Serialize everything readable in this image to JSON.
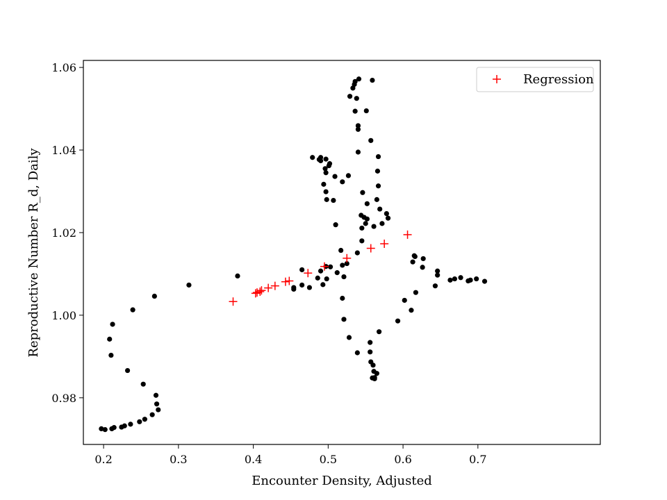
{
  "chart_data": {
    "type": "scatter",
    "title": "",
    "xlabel": "Encounter Density, Adjusted",
    "ylabel": "Reproductive Number R_d, Daily",
    "xlim": [
      0.173,
      0.8635
    ],
    "ylim": [
      0.9687,
      1.0617
    ],
    "xticks": [
      0.2,
      0.3,
      0.4,
      0.5,
      0.6,
      0.7
    ],
    "xtick_labels": [
      "0.2",
      "0.3",
      "0.4",
      "0.5",
      "0.6",
      "0.7"
    ],
    "yticks": [
      0.98,
      1.0,
      1.02,
      1.04,
      1.06
    ],
    "ytick_labels": [
      "0.98",
      "1.00",
      "1.02",
      "1.04",
      "1.06"
    ],
    "grid": false,
    "legend_position": "top-right",
    "series": [
      {
        "name": "",
        "marker": "dot",
        "color": "#000000",
        "points": [
          [
            0.197,
            0.9725
          ],
          [
            0.202,
            0.9723
          ],
          [
            0.211,
            0.9725
          ],
          [
            0.214,
            0.9728
          ],
          [
            0.224,
            0.9729
          ],
          [
            0.228,
            0.9732
          ],
          [
            0.236,
            0.9736
          ],
          [
            0.248,
            0.9742
          ],
          [
            0.255,
            0.9748
          ],
          [
            0.265,
            0.9759
          ],
          [
            0.273,
            0.9771
          ],
          [
            0.271,
            0.9785
          ],
          [
            0.27,
            0.9806
          ],
          [
            0.253,
            0.9833
          ],
          [
            0.232,
            0.9866
          ],
          [
            0.21,
            0.9903
          ],
          [
            0.208,
            0.9942
          ],
          [
            0.212,
            0.9978
          ],
          [
            0.239,
            1.0013
          ],
          [
            0.268,
            1.0046
          ],
          [
            0.314,
            1.0073
          ],
          [
            0.379,
            1.0095
          ],
          [
            0.454,
            1.0067
          ],
          [
            0.454,
            1.0063
          ],
          [
            0.465,
            1.011
          ],
          [
            0.465,
            1.0073
          ],
          [
            0.475,
            1.0067
          ],
          [
            0.486,
            1.009
          ],
          [
            0.49,
            1.0107
          ],
          [
            0.493,
            1.0074
          ],
          [
            0.497,
            1.0118
          ],
          [
            0.498,
            1.0088
          ],
          [
            0.503,
            1.0117
          ],
          [
            0.512,
            1.0103
          ],
          [
            0.519,
            1.0121
          ],
          [
            0.521,
            1.0093
          ],
          [
            0.517,
            1.0157
          ],
          [
            0.525,
            1.0125
          ],
          [
            0.51,
            1.0219
          ],
          [
            0.507,
            1.0278
          ],
          [
            0.498,
            1.028
          ],
          [
            0.497,
            1.0299
          ],
          [
            0.494,
            1.0317
          ],
          [
            0.497,
            1.0345
          ],
          [
            0.496,
            1.0355
          ],
          [
            0.501,
            1.0362
          ],
          [
            0.497,
            1.0378
          ],
          [
            0.49,
            1.0382
          ],
          [
            0.488,
            1.0377
          ],
          [
            0.49,
            1.0374
          ],
          [
            0.502,
            1.0367
          ],
          [
            0.509,
            1.0336
          ],
          [
            0.519,
            1.0323
          ],
          [
            0.527,
            1.0338
          ],
          [
            0.479,
            1.0382
          ],
          [
            0.519,
            1.0041
          ],
          [
            0.521,
            0.999
          ],
          [
            0.528,
            0.9946
          ],
          [
            0.539,
            0.9909
          ],
          [
            0.539,
            1.0151
          ],
          [
            0.545,
            1.018
          ],
          [
            0.545,
            1.0211
          ],
          [
            0.55,
            1.0222
          ],
          [
            0.552,
            1.0233
          ],
          [
            0.548,
            1.0237
          ],
          [
            0.544,
            1.0242
          ],
          [
            0.552,
            1.027
          ],
          [
            0.546,
            1.0297
          ],
          [
            0.54,
            1.0395
          ],
          [
            0.54,
            1.045
          ],
          [
            0.54,
            1.0459
          ],
          [
            0.536,
            1.0494
          ],
          [
            0.551,
            1.0495
          ],
          [
            0.538,
            1.0525
          ],
          [
            0.533,
            1.055
          ],
          [
            0.535,
            1.0559
          ],
          [
            0.536,
            1.0566
          ],
          [
            0.541,
            1.0572
          ],
          [
            0.559,
            1.0569
          ],
          [
            0.529,
            1.053
          ],
          [
            0.557,
            1.0423
          ],
          [
            0.567,
            1.0384
          ],
          [
            0.566,
            1.0349
          ],
          [
            0.567,
            1.0313
          ],
          [
            0.565,
            1.028
          ],
          [
            0.569,
            1.0257
          ],
          [
            0.578,
            1.0246
          ],
          [
            0.58,
            1.0235
          ],
          [
            0.572,
            1.0222
          ],
          [
            0.561,
            1.0215
          ],
          [
            0.556,
            0.9934
          ],
          [
            0.556,
            0.9911
          ],
          [
            0.557,
            0.9887
          ],
          [
            0.56,
            0.9879
          ],
          [
            0.561,
            0.9864
          ],
          [
            0.565,
            0.9859
          ],
          [
            0.559,
            0.9848
          ],
          [
            0.562,
            0.9846
          ],
          [
            0.562,
            0.9849
          ],
          [
            0.568,
            0.996
          ],
          [
            0.593,
            0.9986
          ],
          [
            0.602,
            1.0036
          ],
          [
            0.611,
            1.0012
          ],
          [
            0.613,
            1.0129
          ],
          [
            0.615,
            1.0144
          ],
          [
            0.616,
            1.0142
          ],
          [
            0.626,
            1.0116
          ],
          [
            0.627,
            1.0137
          ],
          [
            0.617,
            1.0055
          ],
          [
            0.643,
            1.0071
          ],
          [
            0.646,
            1.0097
          ],
          [
            0.646,
            1.0107
          ],
          [
            0.663,
            1.0085
          ],
          [
            0.669,
            1.0088
          ],
          [
            0.677,
            1.0091
          ],
          [
            0.687,
            1.0083
          ],
          [
            0.69,
            1.0085
          ],
          [
            0.698,
            1.0088
          ],
          [
            0.709,
            1.0082
          ]
        ]
      },
      {
        "name": "Regression",
        "marker": "plus",
        "color": "#ff0000",
        "points": [
          [
            0.373,
            1.0033
          ],
          [
            0.403,
            1.0053
          ],
          [
            0.405,
            1.0055
          ],
          [
            0.409,
            1.0057
          ],
          [
            0.411,
            1.006
          ],
          [
            0.42,
            1.0066
          ],
          [
            0.429,
            1.0071
          ],
          [
            0.443,
            1.0081
          ],
          [
            0.448,
            1.0083
          ],
          [
            0.473,
            1.0102
          ],
          [
            0.495,
            1.0118
          ],
          [
            0.525,
            1.0138
          ],
          [
            0.557,
            1.0162
          ],
          [
            0.575,
            1.0173
          ],
          [
            0.606,
            1.0195
          ]
        ]
      }
    ]
  }
}
